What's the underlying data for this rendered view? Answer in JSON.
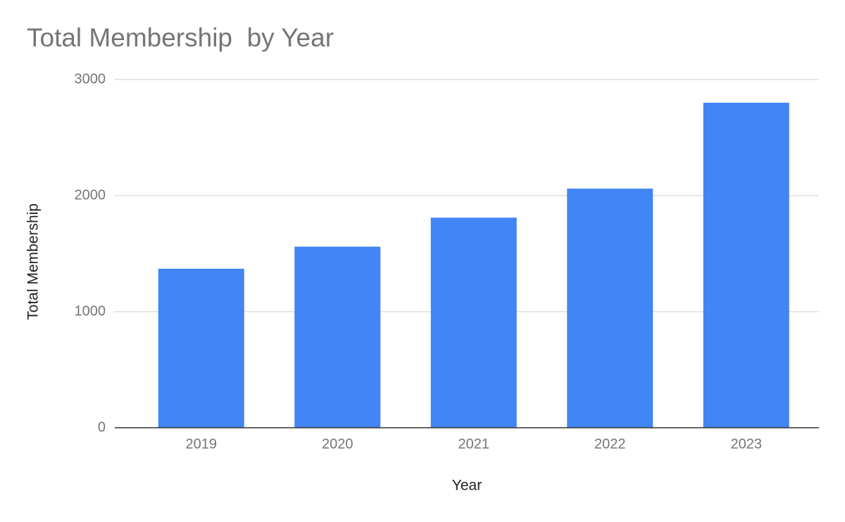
{
  "chart_data": {
    "type": "bar",
    "title": "Total Membership  by Year",
    "x_label": "Year",
    "y_label": "Total Membership",
    "categories": [
      "2019",
      "2020",
      "2021",
      "2022",
      "2023"
    ],
    "values": [
      1370,
      1560,
      1810,
      2060,
      2800
    ],
    "color": "#4285f4",
    "ylim": [
      0,
      3000
    ],
    "yticks": [
      0,
      1000,
      2000,
      3000
    ],
    "grid": true
  }
}
